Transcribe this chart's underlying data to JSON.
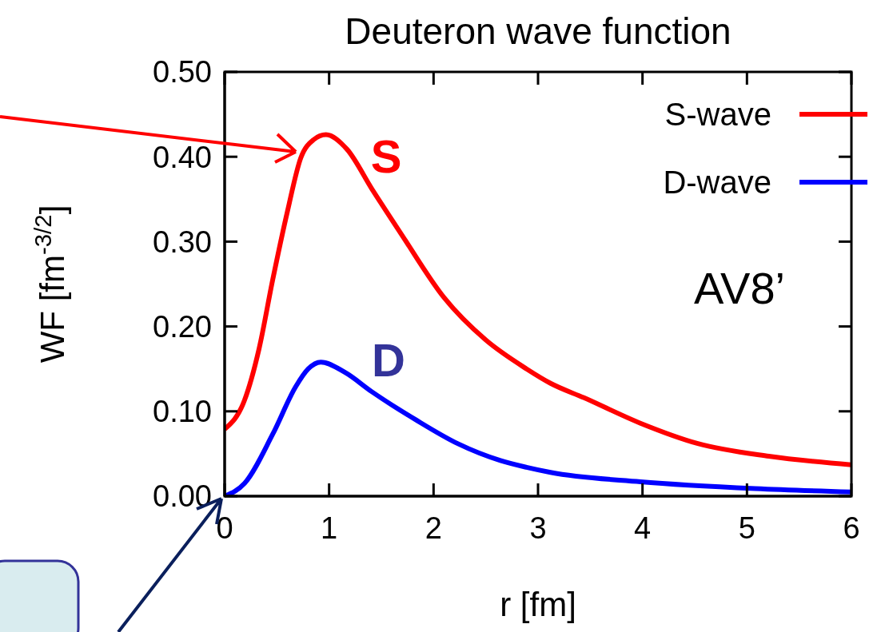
{
  "chart_data": {
    "type": "line",
    "title": "Deuteron wave function",
    "xlabel": "r [fm]",
    "ylabel": "WF [fm$^{-3/2}$]",
    "xlim": [
      0,
      6
    ],
    "xticks": [
      0,
      1,
      2,
      3,
      4,
      5,
      6
    ],
    "ylim": [
      0,
      0.5
    ],
    "yticks": [
      {
        "value": 0,
        "label": "0.00"
      },
      {
        "value": 0.1,
        "label": "0.10"
      },
      {
        "value": 0.2,
        "label": "0.20"
      },
      {
        "value": 0.3,
        "label": "0.30"
      },
      {
        "value": 0.4,
        "label": "0.40"
      },
      {
        "value": 0.5,
        "label": "0.50"
      }
    ],
    "series": [
      {
        "name": "S-wave",
        "color": "#ff0000",
        "x": [
          0,
          0.19,
          0.33,
          0.46,
          0.6,
          0.73,
          0.85,
          0.97,
          1.17,
          1.41,
          1.69,
          2.1,
          2.5,
          2.89,
          3.12,
          3.44,
          3.98,
          4.53,
          5.21,
          6
        ],
        "values": [
          0.079,
          0.113,
          0.174,
          0.255,
          0.335,
          0.399,
          0.42,
          0.426,
          0.409,
          0.362,
          0.309,
          0.234,
          0.184,
          0.15,
          0.133,
          0.116,
          0.086,
          0.062,
          0.047,
          0.037
        ]
      },
      {
        "name": "D-wave",
        "color": "#0000ff",
        "x": [
          0,
          0.19,
          0.46,
          0.68,
          0.8,
          0.92,
          1.15,
          1.41,
          1.83,
          2.23,
          2.64,
          2.89,
          3.12,
          3.98,
          5.08,
          6
        ],
        "values": [
          0,
          0.015,
          0.073,
          0.129,
          0.15,
          0.158,
          0.146,
          0.123,
          0.09,
          0.062,
          0.042,
          0.034,
          0.028,
          0.017,
          0.009,
          0.005
        ]
      }
    ],
    "annotations": [
      "S",
      "D",
      "AV8’"
    ],
    "legend": "top right",
    "grid": false,
    "marker": "none",
    "line_style": "solid"
  }
}
